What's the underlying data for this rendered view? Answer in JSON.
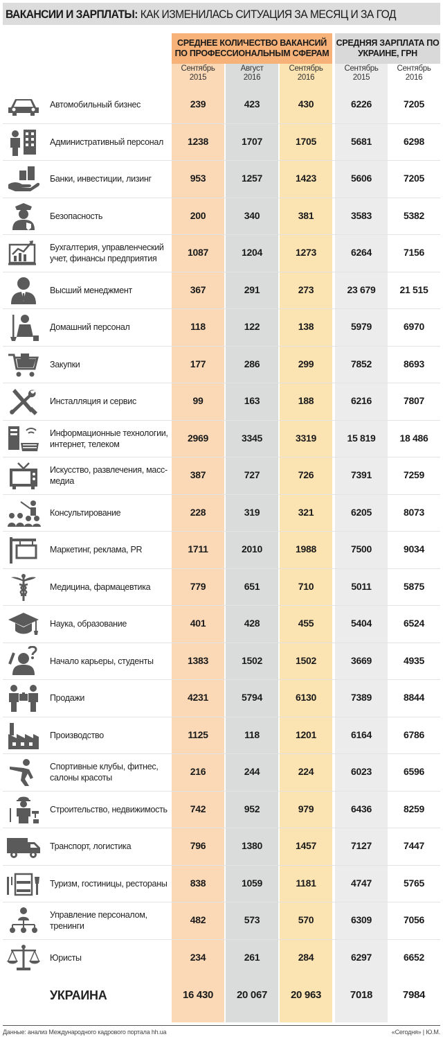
{
  "title": {
    "bold": "ВАКАНСИИ И ЗАРПЛАТЫ:",
    "rest": " КАК ИЗМЕНИЛАСЬ СИТУАЦИЯ ЗА МЕСЯЦ И ЗА ГОД"
  },
  "headers": {
    "vacancies": "СРЕДНЕЕ КОЛИЧЕСТВО ВАКАНСИЙ ПО ПРОФЕССИОНАЛЬНЫМ СФЕРАМ",
    "salary": "СРЕДНЯЯ ЗАРПЛАТА ПО УКРАИНЕ, ГРН"
  },
  "columns": [
    "Сентябрь 2015",
    "Август 2016",
    "Сентябрь 2016",
    "Сентябрь 2015",
    "Сентябрь 2016"
  ],
  "colors": {
    "vac_sep2015": "#fbd9b6",
    "vac_aug2016": "#dadcdc",
    "vac_sep2016": "#fce3b2",
    "sal_sep2015": "#ececec",
    "sal_sep2016": "#ffffff",
    "header_vac": "#f6b279",
    "header_sal": "#d9d9d9",
    "icon": "#5a5a5a"
  },
  "rows": [
    {
      "icon": "car-icon",
      "label": "Автомобильный бизнес",
      "values": [
        "239",
        "423",
        "430",
        "6226",
        "7205"
      ]
    },
    {
      "icon": "office-worker-icon",
      "label": "Административный персонал",
      "values": [
        "1238",
        "1707",
        "1705",
        "5681",
        "6298"
      ]
    },
    {
      "icon": "money-hand-icon",
      "label": "Банки, инвестиции, лизинг",
      "values": [
        "953",
        "1257",
        "1423",
        "5606",
        "7205"
      ]
    },
    {
      "icon": "security-guard-icon",
      "label": "Безопасность",
      "values": [
        "200",
        "340",
        "381",
        "3583",
        "5382"
      ]
    },
    {
      "icon": "growth-chart-icon",
      "label": "Бухгалтерия, управленческий учет, финансы предприятия",
      "values": [
        "1087",
        "1204",
        "1273",
        "6264",
        "7156"
      ]
    },
    {
      "icon": "manager-icon",
      "label": "Высший менеджмент",
      "values": [
        "367",
        "291",
        "273",
        "23 679",
        "21 515"
      ]
    },
    {
      "icon": "housekeeper-icon",
      "label": "Домашний персонал",
      "values": [
        "118",
        "122",
        "138",
        "5979",
        "6970"
      ]
    },
    {
      "icon": "shopping-cart-icon",
      "label": "Закупки",
      "values": [
        "177",
        "286",
        "299",
        "7852",
        "8693"
      ]
    },
    {
      "icon": "tools-icon",
      "label": "Инсталляция и сервис",
      "values": [
        "99",
        "163",
        "188",
        "6216",
        "7807"
      ]
    },
    {
      "icon": "computer-icon",
      "label": "Информационные технологии, интернет, телеком",
      "values": [
        "2969",
        "3345",
        "3319",
        "15 819",
        "18 486"
      ]
    },
    {
      "icon": "tv-icon",
      "label": "Искусство, развлечения, масс-медиа",
      "values": [
        "387",
        "727",
        "726",
        "7391",
        "7259"
      ]
    },
    {
      "icon": "presentation-icon",
      "label": "Консультирование",
      "values": [
        "228",
        "319",
        "321",
        "6205",
        "8073"
      ]
    },
    {
      "icon": "signboard-icon",
      "label": "Маркетинг, реклама, PR",
      "values": [
        "1711",
        "2010",
        "1988",
        "7500",
        "9034"
      ]
    },
    {
      "icon": "caduceus-icon",
      "label": "Медицина, фармацевтика",
      "values": [
        "779",
        "651",
        "710",
        "5011",
        "5875"
      ]
    },
    {
      "icon": "graduation-cap-icon",
      "label": "Наука, образование",
      "values": [
        "401",
        "428",
        "455",
        "5404",
        "6524"
      ]
    },
    {
      "icon": "student-question-icon",
      "label": "Начало карьеры, студенты",
      "values": [
        "1383",
        "1502",
        "1502",
        "3669",
        "4935"
      ]
    },
    {
      "icon": "sales-people-icon",
      "label": "Продажи",
      "values": [
        "4231",
        "5794",
        "6130",
        "7389",
        "8844"
      ]
    },
    {
      "icon": "factory-icon",
      "label": "Производство",
      "values": [
        "1125",
        "118",
        "1201",
        "6164",
        "6786"
      ]
    },
    {
      "icon": "fitness-icon",
      "label": "Спортивные клубы, фитнес, салоны красоты",
      "values": [
        "216",
        "244",
        "224",
        "6023",
        "6596"
      ]
    },
    {
      "icon": "builder-icon",
      "label": "Строительство, недвижимость",
      "values": [
        "742",
        "952",
        "979",
        "6436",
        "8259"
      ]
    },
    {
      "icon": "truck-icon",
      "label": "Транспорт, логистика",
      "values": [
        "796",
        "1380",
        "1457",
        "7127",
        "7447"
      ]
    },
    {
      "icon": "hotel-icon",
      "label": "Туризм, гостиницы, рестораны",
      "values": [
        "838",
        "1059",
        "1181",
        "4747",
        "5765"
      ]
    },
    {
      "icon": "hr-management-icon",
      "label": "Управление персоналом, тренинги",
      "values": [
        "482",
        "573",
        "570",
        "6309",
        "7056"
      ]
    },
    {
      "icon": "scales-icon",
      "label": "Юристы",
      "values": [
        "234",
        "261",
        "284",
        "6297",
        "6652"
      ]
    }
  ],
  "total": {
    "label": "УКРАИНА",
    "values": [
      "16 430",
      "20 067",
      "20 963",
      "7018",
      "7984"
    ]
  },
  "footer": {
    "source": "Данные: анализ Международного кадрового портала hh.ua",
    "credit": "«Сегодня» | Ю.М."
  }
}
